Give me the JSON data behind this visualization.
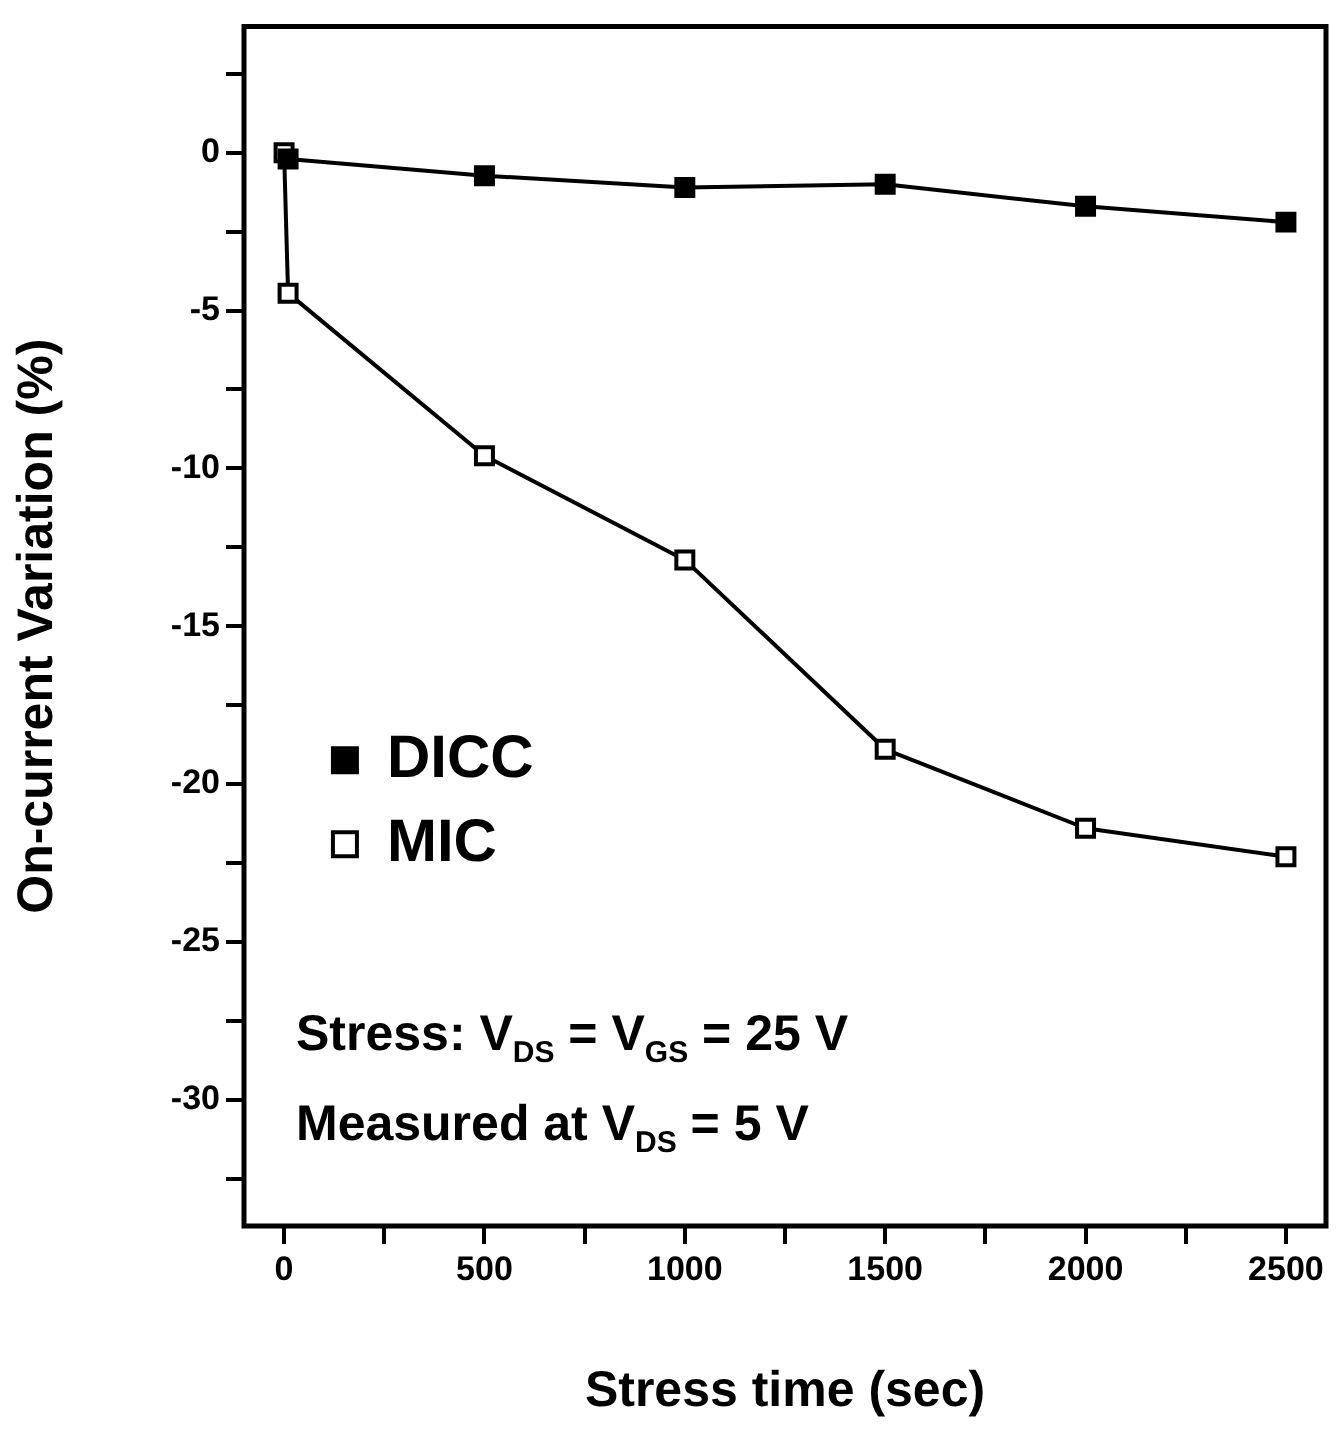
{
  "chart_data": {
    "type": "line",
    "xlabel": "Stress time (sec)",
    "ylabel": "On-current Variation (%)",
    "xlim": [
      -100,
      2600
    ],
    "xticks": [
      0,
      {
        "value": 250,
        "label": null
      },
      500,
      {
        "value": 750,
        "label": null
      },
      1000,
      {
        "value": 1250,
        "label": null
      },
      1500,
      {
        "value": 1750,
        "label": null
      },
      2000,
      {
        "value": 2250,
        "label": null
      },
      2500
    ],
    "ylim": [
      -34,
      4
    ],
    "yticks": [
      {
        "value": -32.5,
        "label": null
      },
      -30,
      {
        "value": -27.5,
        "label": null
      },
      -25,
      {
        "value": -22.5,
        "label": null
      },
      -20,
      {
        "value": -17.5,
        "label": null
      },
      -15,
      {
        "value": -12.5,
        "label": null
      },
      -10,
      {
        "value": -7.5,
        "label": null
      },
      -5,
      {
        "value": -2.5,
        "label": null
      },
      0,
      {
        "value": 2.5,
        "label": null
      }
    ],
    "series": [
      {
        "name": "DICC",
        "color": "#000000",
        "x": [
          10,
          500,
          1000,
          1500,
          2000,
          2500
        ],
        "values": [
          -0.2,
          -0.73,
          -1.1,
          -1.0,
          -1.7,
          -2.2
        ]
      },
      {
        "name": "MIC",
        "color": "#000000",
        "x": [
          0,
          10,
          500,
          1000,
          1500,
          2000,
          2500
        ],
        "values": [
          0,
          -4.45,
          -9.6,
          -12.9,
          -18.9,
          -21.4,
          -22.3
        ]
      }
    ],
    "marker": "square",
    "line_style": "solid",
    "grid": false,
    "legend": "left",
    "annotations": [
      "Stress: V$_{DS}$ = V$_{GS}$ = 25 V",
      "Measured at V$_{DS}$ = 5 V"
    ]
  }
}
